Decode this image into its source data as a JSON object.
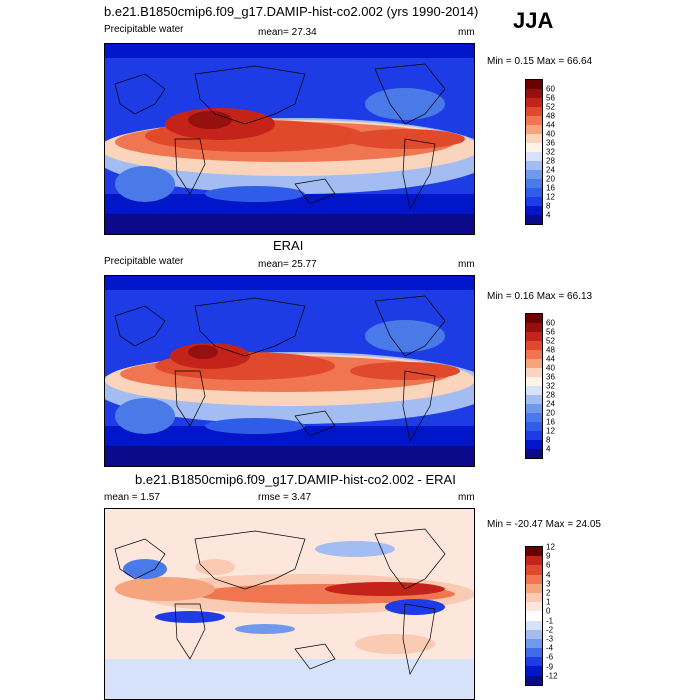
{
  "season": "JJA",
  "colors": {
    "pw": [
      "#0a0a8a",
      "#0016c8",
      "#1e3ce6",
      "#2f5ce8",
      "#4a7ae8",
      "#7099ec",
      "#a3bdf2",
      "#d6e2fa",
      "#fdf3ea",
      "#fbd4bc",
      "#f6a47e",
      "#ef7650",
      "#e0492b",
      "#c4231a",
      "#961010",
      "#6b0000"
    ],
    "diff": [
      "#0a0a8a",
      "#0016c8",
      "#1e3ce6",
      "#3f6ae8",
      "#7099ec",
      "#a3bdf2",
      "#d6e2fa",
      "#ffffff",
      "#fde6dc",
      "#fbcab2",
      "#f6a47e",
      "#ef7650",
      "#e0492b",
      "#c4231a",
      "#6b0000"
    ]
  },
  "panels": [
    {
      "title": "b.e21.B1850cmip6.f09_g17.DAMIP-hist-co2.002 (yrs 1990-2014)",
      "left_label": "Precipitable water",
      "center_label": "mean=  27.34",
      "units": "mm",
      "minmax": "Min =   0.15 Max =  66.64"
    },
    {
      "title": "ERAI",
      "left_label": "Precipitable water",
      "center_label": "mean=  25.77",
      "units": "mm",
      "minmax": "Min =   0.16 Max =  66.13"
    },
    {
      "title": "b.e21.B1850cmip6.f09_g17.DAMIP-hist-co2.002 - ERAI",
      "left_label": "mean =   1.57",
      "center_label": "rmse =   3.47",
      "units": "mm",
      "minmax": "Min = -20.47 Max =  24.05"
    }
  ],
  "chart_data": [
    {
      "type": "heatmap",
      "title": "b.e21.B1850cmip6.f09_g17.DAMIP-hist-co2.002 (yrs 1990-2014)",
      "variable": "Precipitable water",
      "units": "mm",
      "mean": 27.34,
      "min": 0.15,
      "max": 66.64,
      "colorbar_levels": [
        4,
        8,
        12,
        16,
        20,
        24,
        28,
        32,
        36,
        40,
        44,
        48,
        52,
        56,
        60
      ]
    },
    {
      "type": "heatmap",
      "title": "ERAI",
      "variable": "Precipitable water",
      "units": "mm",
      "mean": 25.77,
      "min": 0.16,
      "max": 66.13,
      "colorbar_levels": [
        4,
        8,
        12,
        16,
        20,
        24,
        28,
        32,
        36,
        40,
        44,
        48,
        52,
        56,
        60
      ]
    },
    {
      "type": "heatmap",
      "title": "b.e21.B1850cmip6.f09_g17.DAMIP-hist-co2.002 - ERAI",
      "units": "mm",
      "mean": 1.57,
      "rmse": 3.47,
      "min": -20.47,
      "max": 24.05,
      "colorbar_levels": [
        -12,
        -9,
        -6,
        -4,
        -3,
        -2,
        -1,
        0,
        1,
        2,
        3,
        4,
        6,
        9,
        12
      ]
    }
  ]
}
